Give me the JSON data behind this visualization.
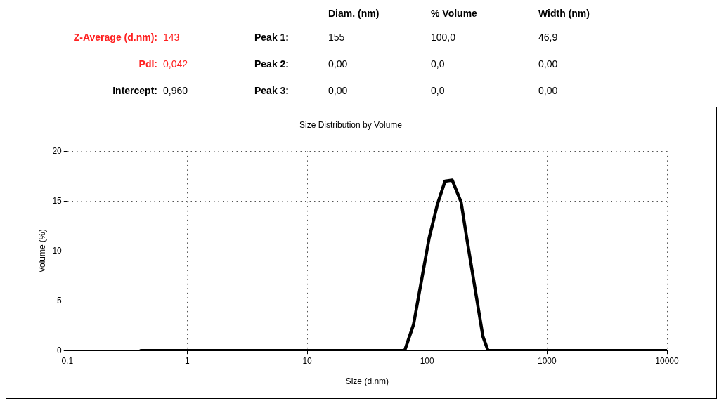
{
  "chart_data": {
    "type": "line",
    "title": "Size Distribution by Volume",
    "xlabel": "Size (d.nm)",
    "ylabel": "Volume (%)",
    "annotations": [
      "Diam. (nm)",
      "% Volume",
      "Width (nm)",
      "Z-Average (d.nm):",
      "143",
      "Peak 1:",
      "155",
      "100,0",
      "46,9",
      "PdI:",
      "0,042",
      "Peak 2:",
      "0,00",
      "0,0",
      "0,00",
      "Intercept:",
      "0,960",
      "Peak 3:",
      "0,00",
      "0,0",
      "0,00"
    ],
    "x": [
      0.41,
      65,
      77,
      104,
      122,
      141,
      162,
      192,
      214,
      292,
      322,
      10000
    ],
    "series": [
      {
        "color": "#000000",
        "values": [
          0,
          0,
          2.6,
          11.3,
          14.7,
          17.0,
          17.1,
          14.9,
          11.3,
          1.4,
          0,
          0
        ]
      }
    ],
    "log": "x",
    "xlim": [
      0.1,
      10000
    ],
    "xticks": [
      0.1,
      1,
      10,
      100,
      1000,
      10000
    ],
    "ylim": [
      0,
      20
    ],
    "yticks": [
      0,
      5,
      10,
      15,
      20
    ],
    "grid": true,
    "legend": false,
    "marker": "none",
    "line_style": "solid"
  }
}
